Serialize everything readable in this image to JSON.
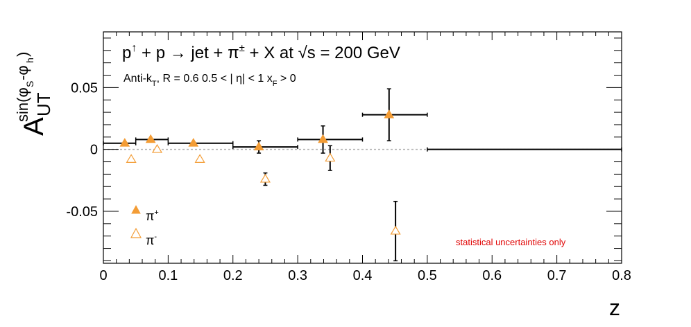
{
  "chart_data": {
    "type": "scatter",
    "title_main": "p↑ + p → jet + π± + X at  √s = 200 GeV",
    "title_sub": "Anti-kT, R = 0.6   0.5 < | η| < 1   xF > 0",
    "xlabel": "z",
    "ylabel": "A_UT^{sin(φS-φh)}",
    "xlim": [
      0,
      0.8
    ],
    "ylim": [
      -0.092,
      0.095
    ],
    "x_ticks": [
      "0",
      "0.1",
      "0.2",
      "0.3",
      "0.4",
      "0.5",
      "0.6",
      "0.7",
      "0.8"
    ],
    "y_ticks": [
      "-0.05",
      "0",
      "0.05"
    ],
    "note": "statistical uncertainties only",
    "note_color": "#e00000",
    "zero_line": true,
    "legend_position": "bottom-left",
    "series": [
      {
        "name": "π+",
        "marker": "filled-triangle",
        "color": "#f39c35",
        "points": [
          {
            "x": 0.033,
            "y": 0.005,
            "yerr": 0.0,
            "xlow": 0.0,
            "xhigh": 0.05
          },
          {
            "x": 0.073,
            "y": 0.008,
            "yerr": 0.0,
            "xlow": 0.05,
            "xhigh": 0.1
          },
          {
            "x": 0.139,
            "y": 0.005,
            "yerr": 0.0,
            "xlow": 0.1,
            "xhigh": 0.2
          },
          {
            "x": 0.24,
            "y": 0.002,
            "yerr": 0.005,
            "xlow": 0.2,
            "xhigh": 0.3
          },
          {
            "x": 0.339,
            "y": 0.008,
            "yerr": 0.011,
            "xlow": 0.3,
            "xhigh": 0.4
          },
          {
            "x": 0.441,
            "y": 0.028,
            "yerr": 0.021,
            "xlow": 0.4,
            "xhigh": 0.5
          },
          {
            "x": 0.5,
            "y": 0.0,
            "yerr": 0.0,
            "xlow": 0.5,
            "xhigh": 0.8,
            "hidden_marker": true
          }
        ]
      },
      {
        "name": "π-",
        "marker": "open-triangle",
        "color": "#f39c35",
        "points": [
          {
            "x": 0.043,
            "y": -0.008,
            "yerr": 0.0
          },
          {
            "x": 0.083,
            "y": 0.0,
            "yerr": 0.0
          },
          {
            "x": 0.149,
            "y": -0.008,
            "yerr": 0.0
          },
          {
            "x": 0.25,
            "y": -0.024,
            "yerr": 0.005
          },
          {
            "x": 0.35,
            "y": -0.007,
            "yerr": 0.01
          },
          {
            "x": 0.451,
            "y": -0.066,
            "yerr": 0.024
          }
        ]
      }
    ]
  }
}
